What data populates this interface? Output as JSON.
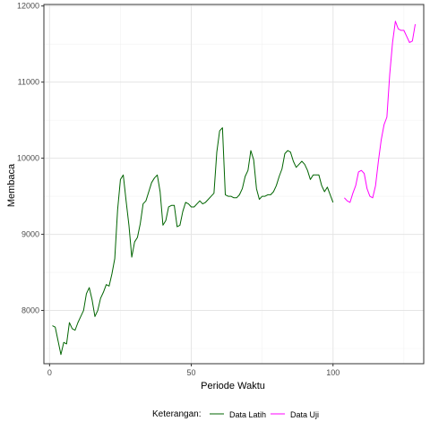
{
  "chart_data": {
    "type": "line",
    "xlabel": "Periode Waktu",
    "ylabel": "Membaca",
    "xlim": [
      -2,
      132
    ],
    "ylim": [
      7300,
      12020
    ],
    "x_ticks": [
      0,
      50,
      100
    ],
    "y_ticks": [
      8000,
      9000,
      10000,
      11000,
      12000
    ],
    "grid": true,
    "legend": {
      "title": "Keterangan:",
      "position": "bottom"
    },
    "series": [
      {
        "name": "Data Latih",
        "color": "#006400",
        "points": [
          [
            1,
            7800
          ],
          [
            2,
            7780
          ],
          [
            3,
            7600
          ],
          [
            4,
            7420
          ],
          [
            5,
            7580
          ],
          [
            6,
            7560
          ],
          [
            7,
            7840
          ],
          [
            8,
            7760
          ],
          [
            9,
            7740
          ],
          [
            10,
            7840
          ],
          [
            11,
            7920
          ],
          [
            12,
            8000
          ],
          [
            13,
            8220
          ],
          [
            14,
            8300
          ],
          [
            15,
            8140
          ],
          [
            16,
            7920
          ],
          [
            17,
            8000
          ],
          [
            18,
            8160
          ],
          [
            19,
            8240
          ],
          [
            20,
            8340
          ],
          [
            21,
            8320
          ],
          [
            22,
            8480
          ],
          [
            23,
            8680
          ],
          [
            24,
            9320
          ],
          [
            25,
            9720
          ],
          [
            26,
            9780
          ],
          [
            27,
            9440
          ],
          [
            28,
            9120
          ],
          [
            29,
            8700
          ],
          [
            30,
            8900
          ],
          [
            31,
            8960
          ],
          [
            32,
            9140
          ],
          [
            33,
            9400
          ],
          [
            34,
            9440
          ],
          [
            35,
            9560
          ],
          [
            36,
            9680
          ],
          [
            37,
            9740
          ],
          [
            38,
            9780
          ],
          [
            39,
            9560
          ],
          [
            40,
            9120
          ],
          [
            41,
            9180
          ],
          [
            42,
            9360
          ],
          [
            43,
            9380
          ],
          [
            44,
            9380
          ],
          [
            45,
            9100
          ],
          [
            46,
            9120
          ],
          [
            47,
            9300
          ],
          [
            48,
            9420
          ],
          [
            49,
            9400
          ],
          [
            50,
            9360
          ],
          [
            51,
            9360
          ],
          [
            52,
            9400
          ],
          [
            53,
            9440
          ],
          [
            54,
            9400
          ],
          [
            55,
            9420
          ],
          [
            56,
            9460
          ],
          [
            57,
            9500
          ],
          [
            58,
            9540
          ],
          [
            59,
            10080
          ],
          [
            60,
            10360
          ],
          [
            61,
            10400
          ],
          [
            62,
            9520
          ],
          [
            63,
            9500
          ],
          [
            64,
            9500
          ],
          [
            65,
            9480
          ],
          [
            66,
            9480
          ],
          [
            67,
            9520
          ],
          [
            68,
            9600
          ],
          [
            69,
            9760
          ],
          [
            70,
            9840
          ],
          [
            71,
            10100
          ],
          [
            72,
            9980
          ],
          [
            73,
            9600
          ],
          [
            74,
            9460
          ],
          [
            75,
            9500
          ],
          [
            76,
            9500
          ],
          [
            77,
            9520
          ],
          [
            78,
            9520
          ],
          [
            79,
            9560
          ],
          [
            80,
            9640
          ],
          [
            81,
            9760
          ],
          [
            82,
            9860
          ],
          [
            83,
            10060
          ],
          [
            84,
            10100
          ],
          [
            85,
            10080
          ],
          [
            86,
            9960
          ],
          [
            87,
            9880
          ],
          [
            88,
            9920
          ],
          [
            89,
            9960
          ],
          [
            90,
            9920
          ],
          [
            91,
            9840
          ],
          [
            92,
            9720
          ],
          [
            93,
            9780
          ],
          [
            94,
            9780
          ],
          [
            95,
            9780
          ],
          [
            96,
            9640
          ],
          [
            97,
            9560
          ],
          [
            98,
            9620
          ],
          [
            99,
            9520
          ],
          [
            100,
            9420
          ]
        ]
      },
      {
        "name": "Data Uji",
        "color": "#ff00ff",
        "points": [
          [
            104,
            9480
          ],
          [
            105,
            9440
          ],
          [
            106,
            9420
          ],
          [
            107,
            9540
          ],
          [
            108,
            9640
          ],
          [
            109,
            9820
          ],
          [
            110,
            9840
          ],
          [
            111,
            9800
          ],
          [
            112,
            9600
          ],
          [
            113,
            9500
          ],
          [
            114,
            9480
          ],
          [
            115,
            9640
          ],
          [
            116,
            9960
          ],
          [
            117,
            10240
          ],
          [
            118,
            10440
          ],
          [
            119,
            10540
          ],
          [
            120,
            11100
          ],
          [
            121,
            11520
          ],
          [
            122,
            11800
          ],
          [
            123,
            11700
          ],
          [
            124,
            11680
          ],
          [
            125,
            11680
          ],
          [
            126,
            11600
          ],
          [
            127,
            11520
          ],
          [
            128,
            11540
          ],
          [
            129,
            11760
          ]
        ]
      }
    ]
  }
}
